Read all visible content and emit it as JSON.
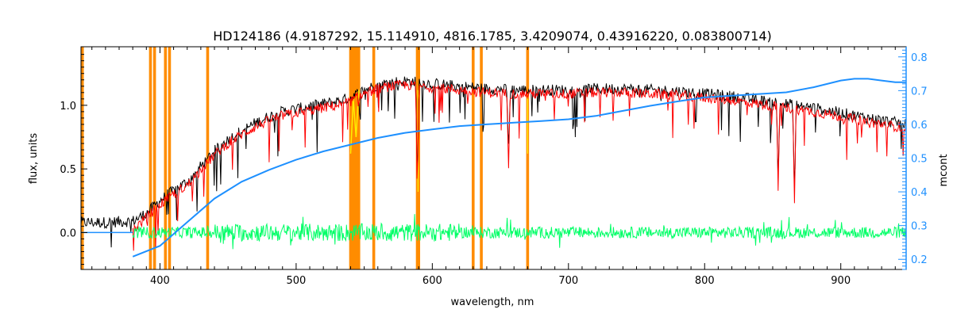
{
  "chart_data": {
    "type": "line",
    "title": "HD124186    (4.9187292, 15.114910, 4816.1785, 3.4209074, 0.43916220, 0.083800714)",
    "xlabel": "wavelength, nm",
    "ylabel": "flux, units",
    "y2label": "mcont",
    "xlim": [
      342,
      948
    ],
    "ylim": [
      -0.29,
      1.46
    ],
    "y2lim": [
      0.17,
      0.83
    ],
    "xticks": [
      400,
      500,
      600,
      700,
      800,
      900
    ],
    "xtick_labels": [
      "400",
      "500",
      "600",
      "700",
      "800",
      "900"
    ],
    "yticks": [
      0.0,
      0.5,
      1.0
    ],
    "ytick_labels": [
      "0.0",
      "0.5",
      "1.0"
    ],
    "y2ticks": [
      0.2,
      0.3,
      0.4,
      0.5,
      0.6,
      0.7,
      0.8
    ],
    "y2tick_labels": [
      "0.2",
      "0.3",
      "0.4",
      "0.5",
      "0.6",
      "0.7",
      "0.8"
    ],
    "grid": false,
    "colors": {
      "observed": "#000000",
      "model": "#ff0000",
      "residuals": "#00ff66",
      "continuum": "#1e90ff",
      "masked": "#ff8c00",
      "highlight": "#ffee00",
      "right_axis": "#1e90ff"
    },
    "series": [
      {
        "name": "observed",
        "axis": "left",
        "x": [
          342,
          360,
          380,
          390,
          400,
          410,
          420,
          430,
          440,
          450,
          460,
          470,
          480,
          490,
          500,
          510,
          520,
          530,
          540,
          550,
          560,
          570,
          580,
          590,
          600,
          620,
          640,
          660,
          680,
          700,
          720,
          740,
          760,
          780,
          800,
          820,
          840,
          860,
          880,
          900,
          920,
          948
        ],
        "values": [
          0.08,
          0.08,
          0.09,
          0.15,
          0.25,
          0.33,
          0.4,
          0.52,
          0.64,
          0.73,
          0.8,
          0.86,
          0.91,
          0.95,
          0.97,
          0.99,
          1.01,
          1.03,
          1.06,
          1.12,
          1.16,
          1.18,
          1.19,
          1.18,
          1.17,
          1.15,
          1.13,
          1.12,
          1.12,
          1.12,
          1.13,
          1.13,
          1.12,
          1.11,
          1.09,
          1.07,
          1.04,
          1.01,
          0.98,
          0.94,
          0.9,
          0.85
        ]
      },
      {
        "name": "model",
        "axis": "left",
        "x": [
          380,
          390,
          400,
          410,
          420,
          430,
          440,
          450,
          460,
          470,
          480,
          490,
          500,
          510,
          520,
          530,
          540,
          550,
          560,
          570,
          580,
          590,
          600,
          620,
          640,
          660,
          680,
          700,
          720,
          740,
          760,
          780,
          800,
          820,
          840,
          860,
          880,
          900,
          920,
          948
        ],
        "values": [
          0.02,
          0.12,
          0.22,
          0.3,
          0.37,
          0.49,
          0.61,
          0.7,
          0.77,
          0.83,
          0.88,
          0.92,
          0.94,
          0.96,
          0.98,
          1.0,
          1.03,
          1.09,
          1.13,
          1.15,
          1.16,
          1.15,
          1.14,
          1.12,
          1.1,
          1.09,
          1.09,
          1.09,
          1.1,
          1.1,
          1.09,
          1.08,
          1.06,
          1.04,
          1.01,
          0.98,
          0.95,
          0.91,
          0.87,
          0.82
        ]
      },
      {
        "name": "residuals",
        "axis": "left",
        "x": [
          380,
          948
        ],
        "values": [
          0.0,
          0.0
        ]
      },
      {
        "name": "continuum",
        "axis": "right",
        "x": [
          380,
          400,
          420,
          440,
          460,
          480,
          500,
          520,
          540,
          560,
          580,
          600,
          620,
          640,
          660,
          680,
          700,
          720,
          740,
          760,
          780,
          800,
          820,
          840,
          860,
          880,
          900,
          910,
          920,
          930,
          940,
          948
        ],
        "values": [
          0.208,
          0.24,
          0.31,
          0.38,
          0.43,
          0.465,
          0.495,
          0.52,
          0.54,
          0.56,
          0.575,
          0.585,
          0.595,
          0.6,
          0.605,
          0.61,
          0.615,
          0.625,
          0.64,
          0.655,
          0.668,
          0.68,
          0.685,
          0.69,
          0.695,
          0.71,
          0.73,
          0.735,
          0.735,
          0.73,
          0.725,
          0.725
        ]
      }
    ],
    "masked_lines_nm": [
      343,
      393,
      396,
      404,
      407,
      435,
      540,
      541,
      542,
      543,
      544,
      545,
      546,
      557,
      589,
      590,
      630,
      636,
      670
    ],
    "absorption_lines": [
      {
        "x": 589,
        "depth": 0.85
      },
      {
        "x": 656,
        "depth": 0.55
      },
      {
        "x": 854,
        "depth": 0.65
      },
      {
        "x": 866,
        "depth": 0.75
      }
    ]
  }
}
